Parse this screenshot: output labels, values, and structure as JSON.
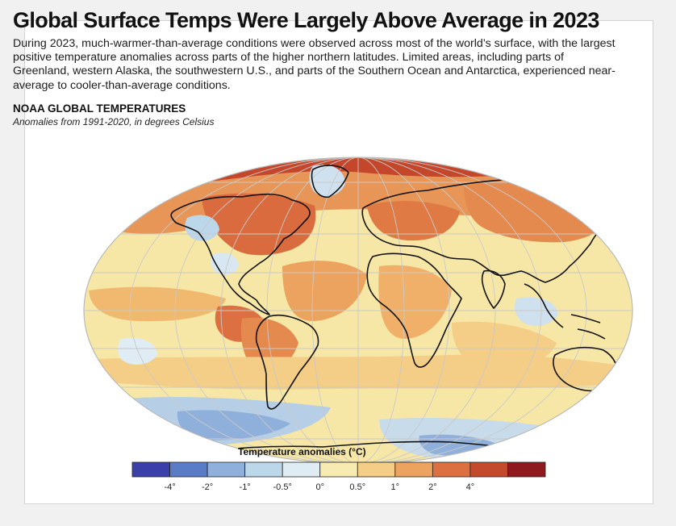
{
  "headline": "Global Surface Temps Were Largely Above Average in 2023",
  "dek": "During 2023, much-warmer-than-average conditions were observed across most of the world’s surface, with the largest positive temperature anomalies across parts of the higher northern latitudes. Limited areas, including parts of Greenland, western Alaska, the southwestern U.S., and parts of the Southern Ocean and Antarctica, experienced near-average to cooler-than-average conditions.",
  "map": {
    "title": "NOAA GLOBAL TEMPERATURES",
    "subtitle": "Anomalies from 1991-2020, in degrees Celsius",
    "projection": "Robinson",
    "gridlines": true
  },
  "legend": {
    "title": "Temperature anomalies (°C)",
    "colors": [
      "#3b3fa8",
      "#5a7bc6",
      "#8fb0da",
      "#bcd6ea",
      "#e0ecf3",
      "#f7ebb1",
      "#f4cd86",
      "#eca35f",
      "#dc7040",
      "#c44a2e",
      "#8e1a1f"
    ],
    "tick_labels": [
      "-4°",
      "-2°",
      "-1°",
      "-0.5°",
      "0°",
      "0.5°",
      "1°",
      "2°",
      "4°"
    ]
  }
}
